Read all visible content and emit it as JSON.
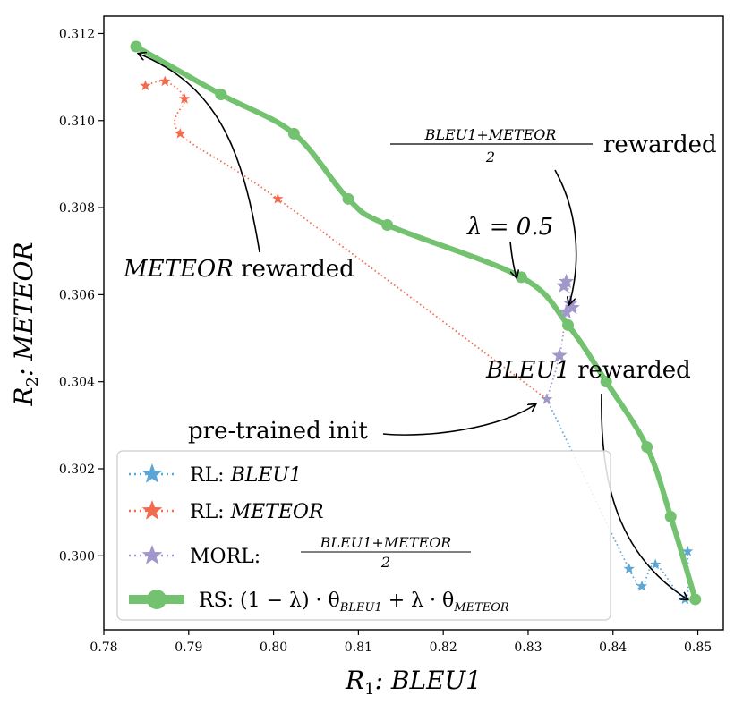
{
  "chart_data": {
    "type": "scatter",
    "xlabel": "R₁: BLEU1",
    "ylabel": "R₂: METEOR",
    "xlim": [
      0.78,
      0.853
    ],
    "ylim": [
      0.2983,
      0.3124
    ],
    "xticks": [
      0.78,
      0.79,
      0.8,
      0.81,
      0.82,
      0.83,
      0.84,
      0.85
    ],
    "xtick_labels": [
      "0.78",
      "0.79",
      "0.80",
      "0.81",
      "0.82",
      "0.83",
      "0.84",
      "0.85"
    ],
    "yticks": [
      0.3,
      0.302,
      0.304,
      0.306,
      0.308,
      0.31,
      0.312
    ],
    "ytick_labels": [
      "0.300",
      "0.302",
      "0.304",
      "0.306",
      "0.308",
      "0.310",
      "0.312"
    ],
    "series": [
      {
        "name": "RL: BLEU1",
        "marker": "star",
        "line": "dotted",
        "color": "#5da5d4",
        "x": [
          0.8322,
          0.8419,
          0.8434,
          0.845,
          0.8485,
          0.8488
        ],
        "y": [
          0.3036,
          0.2997,
          0.2993,
          0.2998,
          0.299,
          0.3001
        ]
      },
      {
        "name": "RL: METEOR",
        "marker": "star",
        "line": "dotted",
        "color": "#f46a4e",
        "x": [
          0.8322,
          0.8005,
          0.789,
          0.7895,
          0.7872,
          0.7849
        ],
        "y": [
          0.3036,
          0.3082,
          0.3097,
          0.3105,
          0.3109,
          0.3108
        ]
      },
      {
        "name": "MORL: (BLEU1+METEOR)/2",
        "marker": "star",
        "line": "dotted",
        "color": "#a197cb",
        "x": [
          0.8322,
          0.8337,
          0.8345,
          0.835,
          0.8352,
          0.8345,
          0.8342
        ],
        "y": [
          0.3036,
          0.3046,
          0.3056,
          0.3058,
          0.3057,
          0.3063,
          0.3062
        ]
      },
      {
        "name": "RS: (1 − λ) · θ_BLEU1 + λ · θ_METEOR",
        "marker": "circle",
        "line": "solid",
        "color": "#72c26f",
        "x": [
          0.8497,
          0.8468,
          0.844,
          0.8392,
          0.8347,
          0.8292,
          0.8134,
          0.8088,
          0.8024,
          0.7938,
          0.7838
        ],
        "y": [
          0.299,
          0.3009,
          0.3025,
          0.304,
          0.3053,
          0.3064,
          0.3076,
          0.3082,
          0.3097,
          0.3106,
          0.3117
        ]
      }
    ],
    "annotations": [
      {
        "text_math": "METEOR",
        "text": " rewarded"
      },
      {
        "text_math": "λ = 0.5",
        "text": ""
      },
      {
        "text_math": "BLEU1",
        "text": " rewarded"
      },
      {
        "text_math": "",
        "text": "pre-trained init"
      },
      {
        "text_math": "BLEU1+METEOR / 2",
        "text": " rewarded"
      }
    ],
    "legend": {
      "position": "lower-left",
      "entries": [
        "RL: BLEU1",
        "RL: METEOR",
        "MORL: (BLEU1+METEOR)/2",
        "RS: (1 − λ) · θ_BLEU1 + λ · θ_METEOR"
      ]
    }
  },
  "labels": {
    "x_prefix": "R",
    "x_sub": "1",
    "x_name": ": BLEU1",
    "y_prefix": "R",
    "y_sub": "2",
    "y_name": ": METEOR",
    "ann_meteor_math": "METEOR",
    "ann_meteor_text": "rewarded",
    "ann_lambda": "λ = 0.5",
    "ann_bleu_math": "BLEU1",
    "ann_bleu_text": "rewarded",
    "ann_init": "pre-trained init",
    "ann_morl_num": "BLEU1+METEOR",
    "ann_morl_den": "2",
    "ann_morl_text": "rewarded",
    "leg_rl_bleu_prefix": "RL: ",
    "leg_rl_bleu_math": "BLEU1",
    "leg_rl_meteor_prefix": "RL: ",
    "leg_rl_meteor_math": "METEOR",
    "leg_morl_prefix": "MORL: ",
    "leg_morl_num": "BLEU1+METEOR",
    "leg_morl_den": "2",
    "leg_rs_prefix": "RS: (1 − λ) · θ",
    "leg_rs_sub1": "BLEU1",
    "leg_rs_mid": " + λ · θ",
    "leg_rs_sub2": "METEOR"
  }
}
